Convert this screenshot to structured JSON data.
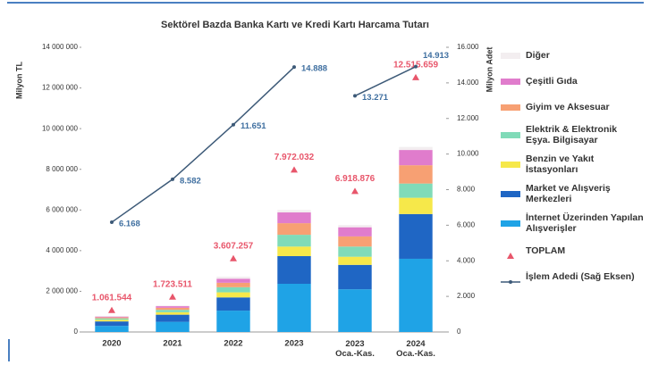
{
  "chart_data": {
    "type": "bar",
    "stacked": true,
    "title": "Sektörel Bazda Banka Kartı ve Kredi Kartı Harcama Tutarı",
    "y_label": "Milyon TL",
    "y2_label": "Milyon Adet",
    "categories": [
      "2020",
      "2021",
      "2022",
      "2023",
      "2023 Oca.-Kas.",
      "2024 Oca.-Kas."
    ],
    "series": [
      {
        "name": "İnternet Üzerinden Yapılan Alışverişler",
        "type": "bar",
        "color": "#1fa3e6",
        "values": [
          300000,
          500000,
          1050000,
          2370000,
          2100000,
          3600000
        ]
      },
      {
        "name": "Market ve Alışveriş Merkezleri",
        "type": "bar",
        "color": "#1f66c4",
        "values": [
          220000,
          350000,
          650000,
          1360000,
          1200000,
          2200000
        ]
      },
      {
        "name": "Benzin ve Yakıt İstasyonları",
        "type": "bar",
        "color": "#f6e84a",
        "values": [
          80000,
          120000,
          250000,
          470000,
          400000,
          800000
        ]
      },
      {
        "name": "Elektrik & Elektronik Eşya. Bilgisayar",
        "type": "bar",
        "color": "#80dbb8",
        "values": [
          70000,
          120000,
          250000,
          580000,
          500000,
          700000
        ]
      },
      {
        "name": "Giyim ve Aksesuar",
        "type": "bar",
        "color": "#f7a073",
        "values": [
          50000,
          100000,
          220000,
          570000,
          500000,
          900000
        ]
      },
      {
        "name": "Çeşitli Gıda",
        "type": "bar",
        "color": "#e07ccc",
        "values": [
          40000,
          80000,
          200000,
          530000,
          450000,
          750000
        ]
      },
      {
        "name": "Diğer",
        "type": "bar",
        "color": "#f3eef0",
        "values": [
          20000,
          30000,
          100000,
          120000,
          110000,
          150000
        ]
      },
      {
        "name": "TOPLAM",
        "type": "scatter",
        "color": "#e8566b",
        "values": [
          1061544,
          1723511,
          3607257,
          7972032,
          6918876,
          12515659
        ],
        "value_labels": [
          "1.061.544",
          "1.723.511",
          "3.607.257",
          "7.972.032",
          "6.918.876",
          "12.515.659"
        ]
      },
      {
        "name": "İşlem Adedi (Sağ Eksen)",
        "type": "line",
        "axis": "y2",
        "color": "#3d5a78",
        "break_after": 3,
        "values": [
          6168,
          8582,
          11651,
          14888,
          13271,
          14913
        ],
        "value_labels": [
          "6.168",
          "8.582",
          "11.651",
          "14.888",
          "13.271",
          "14.913"
        ]
      }
    ],
    "ylim": [
      0,
      14000000
    ],
    "yticks": [
      0,
      {
        "value": 2000000,
        "label": "2 000 000"
      },
      {
        "value": 4000000,
        "label": "4 000 000"
      },
      {
        "value": 6000000,
        "label": "6 000 000"
      },
      {
        "value": 8000000,
        "label": "8 000 000"
      },
      {
        "value": 10000000,
        "label": "10 000 000"
      },
      {
        "value": 12000000,
        "label": "12 000 000"
      },
      {
        "value": 14000000,
        "label": "14 000 000"
      }
    ],
    "y2lim": [
      0,
      16000
    ],
    "y2ticks": [
      0,
      {
        "value": 2000,
        "label": "2.000"
      },
      {
        "value": 4000,
        "label": "4.000"
      },
      {
        "value": 6000,
        "label": "6.000"
      },
      {
        "value": 8000,
        "label": "8.000"
      },
      {
        "value": 10000,
        "label": "10.000"
      },
      {
        "value": 12000,
        "label": "12.000"
      },
      {
        "value": 14000,
        "label": "14.000"
      },
      {
        "value": 16000,
        "label": "16.000"
      }
    ],
    "grid": false,
    "legend": "right"
  }
}
